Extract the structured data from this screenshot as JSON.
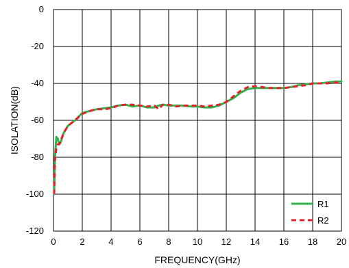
{
  "chart_data": {
    "type": "line",
    "title": "",
    "xlabel": "FREQUENCY(GHz)",
    "ylabel": "ISOLATION(dB)",
    "xlim": [
      0,
      20
    ],
    "ylim": [
      -120,
      0
    ],
    "x_ticks": [
      0,
      2,
      4,
      6,
      8,
      10,
      12,
      14,
      16,
      18,
      20
    ],
    "y_ticks": [
      0,
      -20,
      -40,
      -60,
      -80,
      -100,
      -120
    ],
    "grid": true,
    "legend_position": "bottom-right",
    "series": [
      {
        "name": "R1",
        "color": "#2db34a",
        "style": "solid",
        "x": [
          0.05,
          0.1,
          0.2,
          0.3,
          0.4,
          0.5,
          0.7,
          1.0,
          1.5,
          2.0,
          2.5,
          3.0,
          3.5,
          4.0,
          4.5,
          5.0,
          5.5,
          6.0,
          6.5,
          7.0,
          7.3,
          7.6,
          8.0,
          8.5,
          9.0,
          9.5,
          10.0,
          10.5,
          11.0,
          11.5,
          12.0,
          12.5,
          13.0,
          13.5,
          14.0,
          14.5,
          15.0,
          15.5,
          16.0,
          16.5,
          17.0,
          17.5,
          18.0,
          18.5,
          19.0,
          19.5,
          20.0
        ],
        "y": [
          -100,
          -80,
          -69,
          -70,
          -73,
          -72,
          -67,
          -63,
          -60,
          -56,
          -55,
          -54,
          -53.5,
          -53,
          -52,
          -51.5,
          -52.5,
          -52,
          -53,
          -53,
          -52,
          -51.5,
          -52,
          -52,
          -52,
          -52.5,
          -52.5,
          -53,
          -53,
          -52,
          -50,
          -48,
          -45,
          -43,
          -42.5,
          -42.5,
          -42.5,
          -42.5,
          -42.5,
          -42,
          -41,
          -40.5,
          -40,
          -40,
          -39.5,
          -39,
          -39
        ]
      },
      {
        "name": "R2",
        "color": "#e8202a",
        "style": "dashed",
        "x": [
          0.05,
          0.1,
          0.2,
          0.3,
          0.4,
          0.5,
          0.7,
          1.0,
          1.5,
          2.0,
          2.5,
          3.0,
          3.5,
          4.0,
          4.5,
          5.0,
          5.5,
          6.0,
          6.5,
          7.0,
          7.3,
          7.6,
          8.0,
          8.5,
          9.0,
          9.5,
          10.0,
          10.5,
          11.0,
          11.5,
          12.0,
          12.5,
          13.0,
          13.5,
          14.0,
          14.5,
          15.0,
          15.5,
          16.0,
          16.5,
          17.0,
          17.5,
          18.0,
          18.5,
          19.0,
          19.5,
          20.0
        ],
        "y": [
          -100,
          -82,
          -75,
          -73,
          -73,
          -71,
          -67,
          -63,
          -60,
          -56.5,
          -55,
          -54,
          -54,
          -53.5,
          -52,
          -51.5,
          -51.5,
          -52,
          -52.5,
          -52,
          -54,
          -51.5,
          -51.5,
          -52.5,
          -52,
          -52,
          -52,
          -52.5,
          -52,
          -51.5,
          -50,
          -47,
          -44,
          -42,
          -41.5,
          -42,
          -42.5,
          -42.5,
          -42.5,
          -42,
          -41.5,
          -41,
          -40,
          -40,
          -40,
          -39.5,
          -39.5
        ]
      }
    ]
  }
}
